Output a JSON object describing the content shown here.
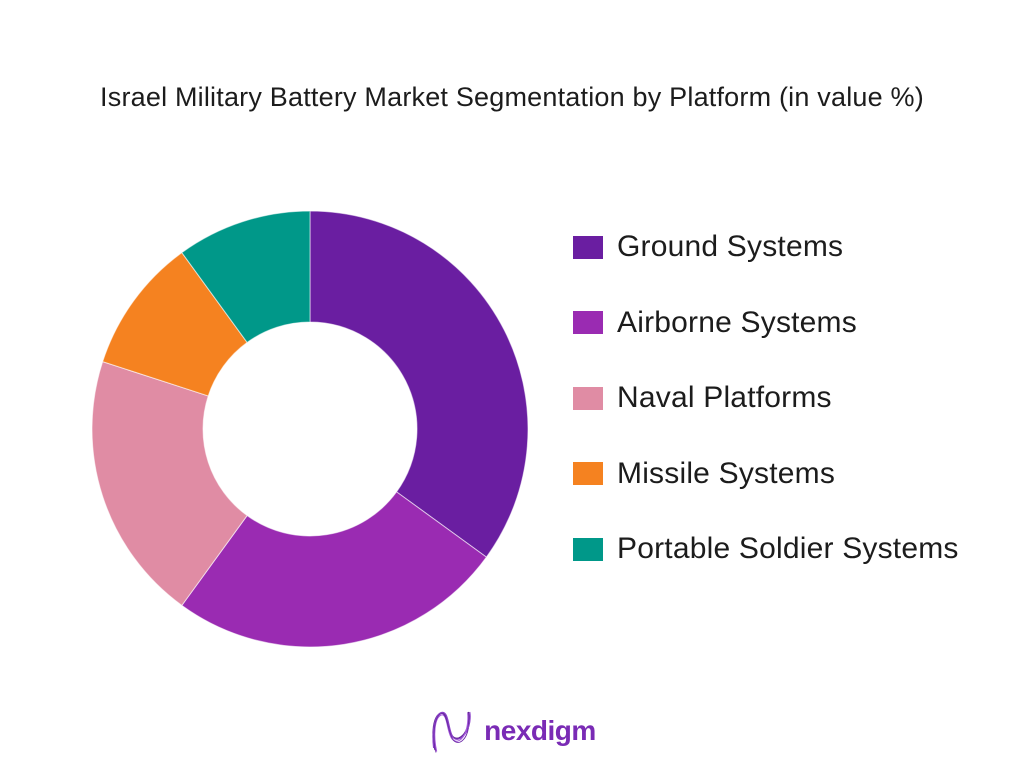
{
  "chart_data": {
    "type": "pie",
    "subtype": "donut",
    "title": "Israel Military Battery Market Segmentation by Platform (in value %)",
    "categories": [
      "Ground Systems",
      "Airborne Systems",
      "Naval Platforms",
      "Missile Systems",
      "Portable Soldier Systems"
    ],
    "values": [
      35,
      25,
      20,
      10,
      10
    ],
    "unit": "%",
    "colors": [
      "#6A1EA1",
      "#9A2BB2",
      "#E08CA4",
      "#F58220",
      "#009889"
    ],
    "start_angle_deg": 0,
    "direction": "clockwise",
    "inner_radius_ratio": 0.49,
    "legend_position": "right",
    "data_labels": "none"
  },
  "text_color": "#1C1C1C",
  "background_color": "#FFFFFF",
  "brand": {
    "wordmark": "nexdigm",
    "color": "#7A2BB5"
  }
}
